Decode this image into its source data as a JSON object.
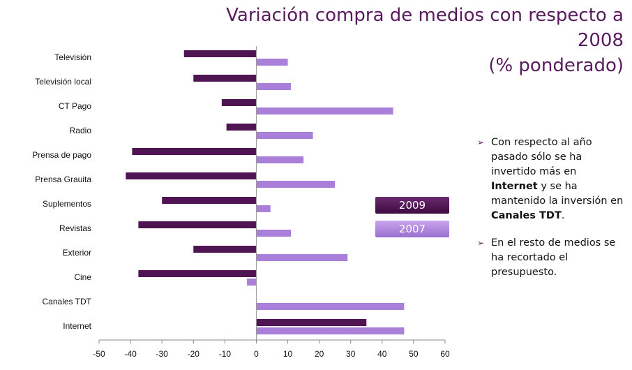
{
  "title": {
    "line1": "Variación compra de medios con respecto a 2008",
    "line2": "(% ponderado)"
  },
  "colors": {
    "series_2009": "#4f1552",
    "series_2007": "#a97fd9",
    "title": "#5a1a5e"
  },
  "chart_data": {
    "type": "bar",
    "orientation": "horizontal",
    "categories": [
      "Televisión",
      "Televisión local",
      "CT Pago",
      "Radio",
      "Prensa de pago",
      "Prensa Grauita",
      "Suplementos",
      "Revistas",
      "Exterior",
      "Cine",
      "Canales TDT",
      "Internet"
    ],
    "series": [
      {
        "name": "2009",
        "values": [
          -23,
          -20,
          -11,
          -9.5,
          -39.5,
          -41.5,
          -30,
          -37.5,
          -20,
          -37.5,
          0,
          35
        ]
      },
      {
        "name": "2007",
        "values": [
          10,
          11,
          43.5,
          18,
          15,
          25,
          4.5,
          11,
          29,
          -3,
          47,
          47
        ]
      }
    ],
    "xlim": [
      -50,
      60
    ],
    "xticks": [
      -50,
      -40,
      -30,
      -20,
      -10,
      0,
      10,
      20,
      30,
      40,
      50,
      60
    ],
    "xlabel": "",
    "ylabel": "",
    "legend": "right"
  },
  "legend": {
    "label_2009": "2009",
    "label_2007": "2007"
  },
  "bullets": [
    {
      "pre": "Con respecto al año pasado sólo se ha invertido más en ",
      "b1": "Internet",
      "mid": " y se ha mantenido la inversión en ",
      "b2": "Canales TDT",
      "post": "."
    },
    {
      "pre": "En el resto de medios se ha recortado el presupuesto.",
      "b1": "",
      "mid": "",
      "b2": "",
      "post": ""
    }
  ],
  "bullet_marker": "➢"
}
